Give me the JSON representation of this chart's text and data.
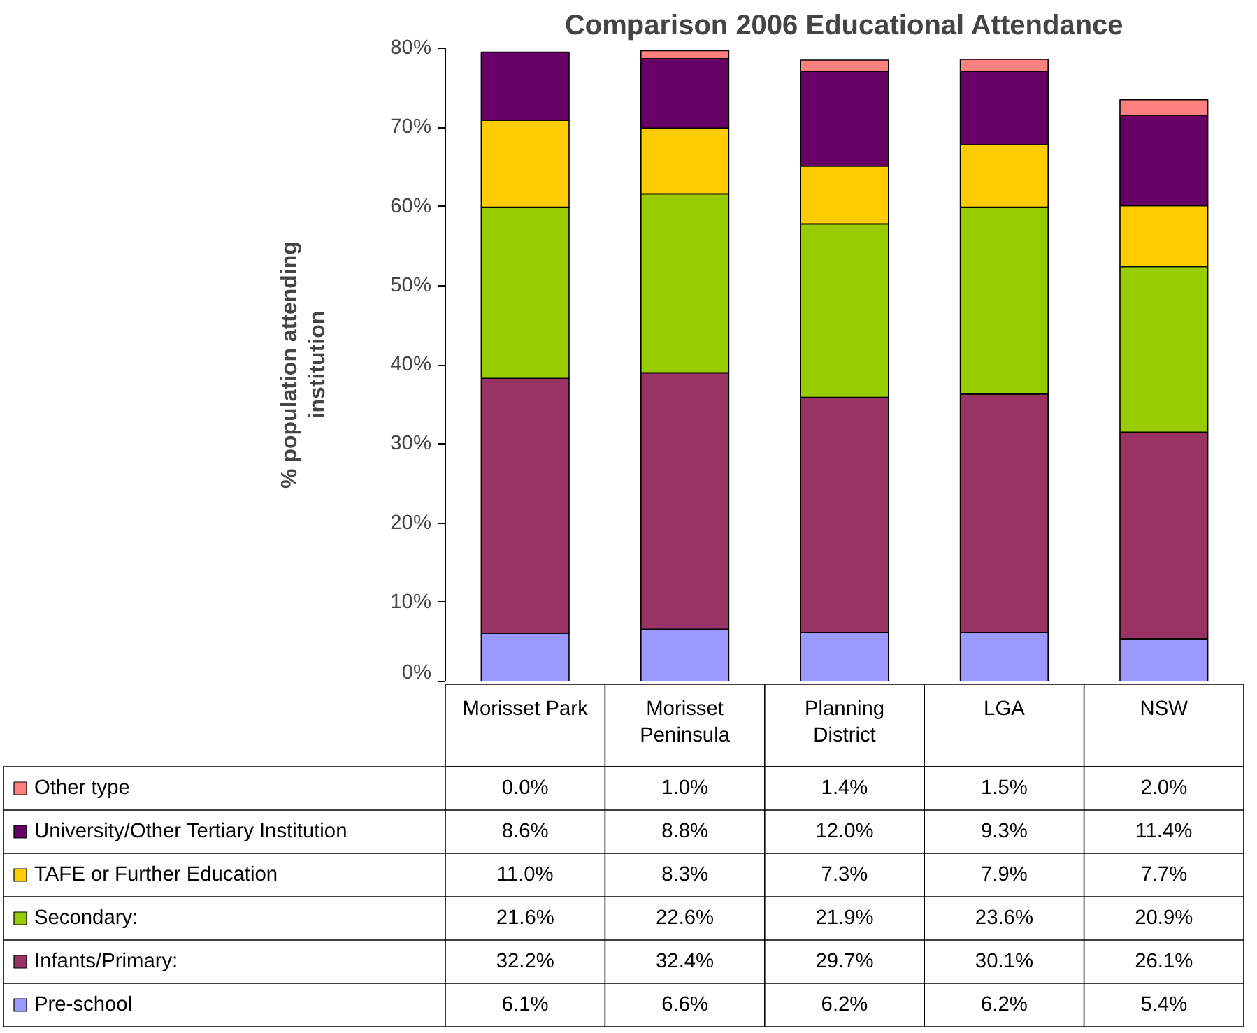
{
  "chart_data": {
    "type": "bar",
    "stacked": true,
    "title": "Comparison 2006 Educational Attendance",
    "ylabel": "% population attending institution",
    "categories": [
      "Morisset Park",
      "Morisset Peninsula",
      "Planning District",
      "LGA",
      "NSW"
    ],
    "ylim": [
      0,
      80
    ],
    "yticks": [
      {
        "value": 0,
        "label": "0%"
      },
      {
        "value": 10,
        "label": "10%"
      },
      {
        "value": 20,
        "label": "20%"
      },
      {
        "value": 30,
        "label": "30%"
      },
      {
        "value": 40,
        "label": "40%"
      },
      {
        "value": 50,
        "label": "50%"
      },
      {
        "value": 60,
        "label": "60%"
      },
      {
        "value": 70,
        "label": "70%"
      },
      {
        "value": 80,
        "label": "80%"
      }
    ],
    "grid": false,
    "legend": "bottom",
    "data_labels": true,
    "series": [
      {
        "name": "Pre-school",
        "color": "#9999ff",
        "values": [
          6.1,
          6.6,
          6.2,
          6.2,
          5.4
        ],
        "value_labels": [
          "6.1%",
          "6.6%",
          "6.2%",
          "6.2%",
          "5.4%"
        ]
      },
      {
        "name": "Infants/Primary:",
        "color": "#993366",
        "values": [
          32.2,
          32.4,
          29.7,
          30.1,
          26.1
        ],
        "value_labels": [
          "32.2%",
          "32.4%",
          "29.7%",
          "30.1%",
          "26.1%"
        ]
      },
      {
        "name": "Secondary:",
        "color": "#99cc00",
        "values": [
          21.6,
          22.6,
          21.9,
          23.6,
          20.9
        ],
        "value_labels": [
          "21.6%",
          "22.6%",
          "21.9%",
          "23.6%",
          "20.9%"
        ]
      },
      {
        "name": "TAFE or Further Education",
        "color": "#ffcc00",
        "values": [
          11.0,
          8.3,
          7.3,
          7.9,
          7.7
        ],
        "value_labels": [
          "11.0%",
          "8.3%",
          "7.3%",
          "7.9%",
          "7.7%"
        ]
      },
      {
        "name": "University/Other Tertiary Institution",
        "color": "#660066",
        "values": [
          8.6,
          8.8,
          12.0,
          9.3,
          11.4
        ],
        "value_labels": [
          "8.6%",
          "8.8%",
          "12.0%",
          "9.3%",
          "11.4%"
        ]
      },
      {
        "name": "Other type",
        "color": "#ff8080",
        "values": [
          0.0,
          1.0,
          1.4,
          1.5,
          2.0
        ],
        "value_labels": [
          "0.0%",
          "1.0%",
          "1.4%",
          "1.5%",
          "2.0%"
        ]
      }
    ]
  }
}
